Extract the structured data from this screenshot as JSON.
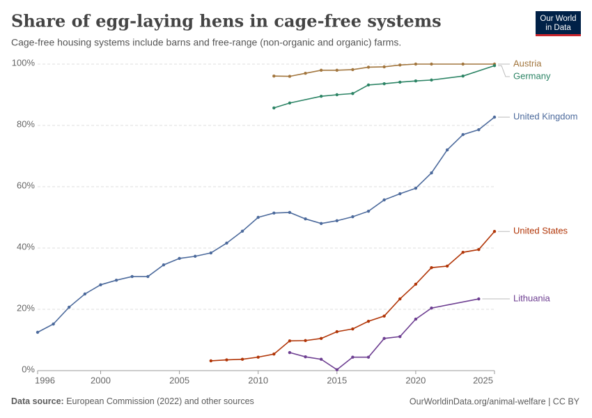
{
  "chart_data": {
    "type": "line",
    "title": "Share of egg-laying hens in cage-free systems",
    "subtitle": "Cage-free housing systems include barns and free-range (non-organic and organic) farms.",
    "logo": [
      "Our World",
      "in Data"
    ],
    "source_label": "Data source:",
    "source": "European Commission (2022) and other sources",
    "credit": "OurWorldinData.org/animal-welfare | CC BY",
    "xlim": [
      1996,
      2025
    ],
    "xticks": [
      1996,
      2000,
      2005,
      2010,
      2015,
      2020,
      2025
    ],
    "ylim": [
      0,
      100
    ],
    "yticks": [
      {
        "value": 0,
        "label": "0%"
      },
      {
        "value": 20,
        "label": "20%"
      },
      {
        "value": 40,
        "label": "40%"
      },
      {
        "value": 60,
        "label": "60%"
      },
      {
        "value": 80,
        "label": "80%"
      },
      {
        "value": 100,
        "label": "100%"
      }
    ],
    "grid": true,
    "series": [
      {
        "name": "Austria",
        "color": "#a2763e",
        "x": [
          2011,
          2012,
          2013,
          2014,
          2015,
          2016,
          2017,
          2018,
          2019,
          2020,
          2021,
          2023,
          2025
        ],
        "values": [
          96.1,
          96,
          97,
          98,
          98,
          98.2,
          99,
          99.1,
          99.7,
          100,
          100,
          100,
          100
        ]
      },
      {
        "name": "Germany",
        "color": "#2c8465",
        "x": [
          2011,
          2012,
          2014,
          2015,
          2016,
          2017,
          2018,
          2019,
          2020,
          2021,
          2023,
          2025
        ],
        "values": [
          85.7,
          87.3,
          89.5,
          90,
          90.4,
          93.2,
          93.6,
          94.1,
          94.5,
          94.8,
          96.1,
          99.5
        ]
      },
      {
        "name": "United Kingdom",
        "color": "#4c6a9c",
        "x": [
          1996,
          1997,
          1998,
          1999,
          2000,
          2001,
          2002,
          2003,
          2004,
          2005,
          2006,
          2007,
          2008,
          2009,
          2010,
          2011,
          2012,
          2013,
          2014,
          2015,
          2016,
          2017,
          2018,
          2019,
          2020,
          2021,
          2022,
          2023,
          2024,
          2025
        ],
        "values": [
          12.5,
          15.2,
          20.7,
          25,
          28,
          29.5,
          30.7,
          30.7,
          34.5,
          36.6,
          37.3,
          38.4,
          41.6,
          45.5,
          50,
          51.4,
          51.6,
          49.5,
          48,
          48.9,
          50.2,
          52,
          55.7,
          57.7,
          59.5,
          64.5,
          72,
          77,
          78.6,
          82.7
        ]
      },
      {
        "name": "United States",
        "color": "#b13507",
        "x": [
          2007,
          2008,
          2009,
          2010,
          2011,
          2012,
          2013,
          2014,
          2015,
          2016,
          2017,
          2018,
          2019,
          2020,
          2021,
          2022,
          2023,
          2024,
          2025
        ],
        "values": [
          3.2,
          3.5,
          3.7,
          4.4,
          5.4,
          9.7,
          9.8,
          10.5,
          12.7,
          13.6,
          16.1,
          17.8,
          23.4,
          28.2,
          33.6,
          34.1,
          38.6,
          39.5,
          45.4
        ]
      },
      {
        "name": "Lithuania",
        "color": "#6d3e91",
        "x": [
          2012,
          2013,
          2014,
          2015,
          2016,
          2017,
          2018,
          2019,
          2020,
          2021,
          2024
        ],
        "values": [
          5.9,
          4.5,
          3.7,
          0.3,
          4.4,
          4.4,
          10.5,
          11.1,
          16.8,
          20.4,
          23.4
        ]
      }
    ]
  }
}
